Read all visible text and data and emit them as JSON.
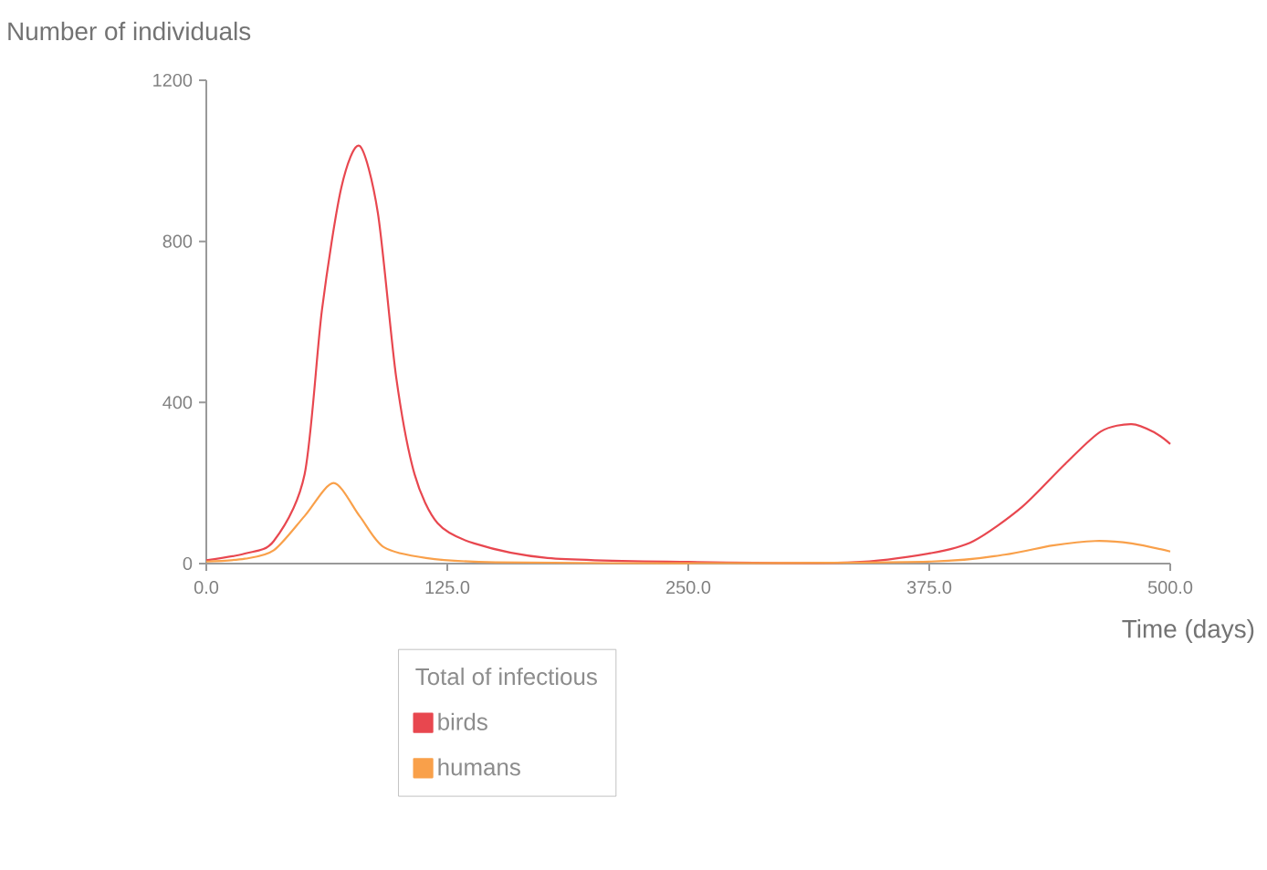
{
  "chart_data": {
    "type": "line",
    "ylabel": "Number of individuals",
    "xlabel": "Time (days)",
    "legend_title": "Total of infectious",
    "legend": "bottom",
    "grid": false,
    "xlim": [
      0,
      500
    ],
    "ylim": [
      0,
      1200
    ],
    "xticks": [
      {
        "value": 0,
        "label": "0.0"
      },
      {
        "value": 125,
        "label": "125.0"
      },
      {
        "value": 250,
        "label": "250.0"
      },
      {
        "value": 375,
        "label": "375.0"
      },
      {
        "value": 500,
        "label": "500.0"
      }
    ],
    "yticks": [
      0,
      400,
      800,
      1200
    ],
    "series": [
      {
        "name": "birds",
        "color": "#e8474f",
        "x": [
          0,
          20,
          35,
          51,
          60,
          70,
          79.5,
          89,
          98.5,
          108,
          120,
          139,
          177,
          250,
          335,
          376,
          398,
          423,
          445,
          464,
          480,
          492,
          500
        ],
        "values": [
          8,
          25,
          56,
          222,
          630,
          933,
          1037,
          870,
          462,
          222,
          100,
          50,
          14,
          4,
          3,
          26,
          56,
          140,
          245,
          328,
          346,
          325,
          297
        ]
      },
      {
        "name": "humans",
        "color": "#f9a04a",
        "x": [
          0,
          20,
          35,
          51,
          66,
          79.5,
          92,
          114,
          150,
          250,
          376,
          414,
          439,
          461,
          480,
          500
        ],
        "values": [
          5,
          12,
          33,
          118,
          200,
          118,
          41,
          14,
          3,
          1,
          5,
          22,
          45,
          56,
          50,
          30
        ]
      }
    ]
  }
}
